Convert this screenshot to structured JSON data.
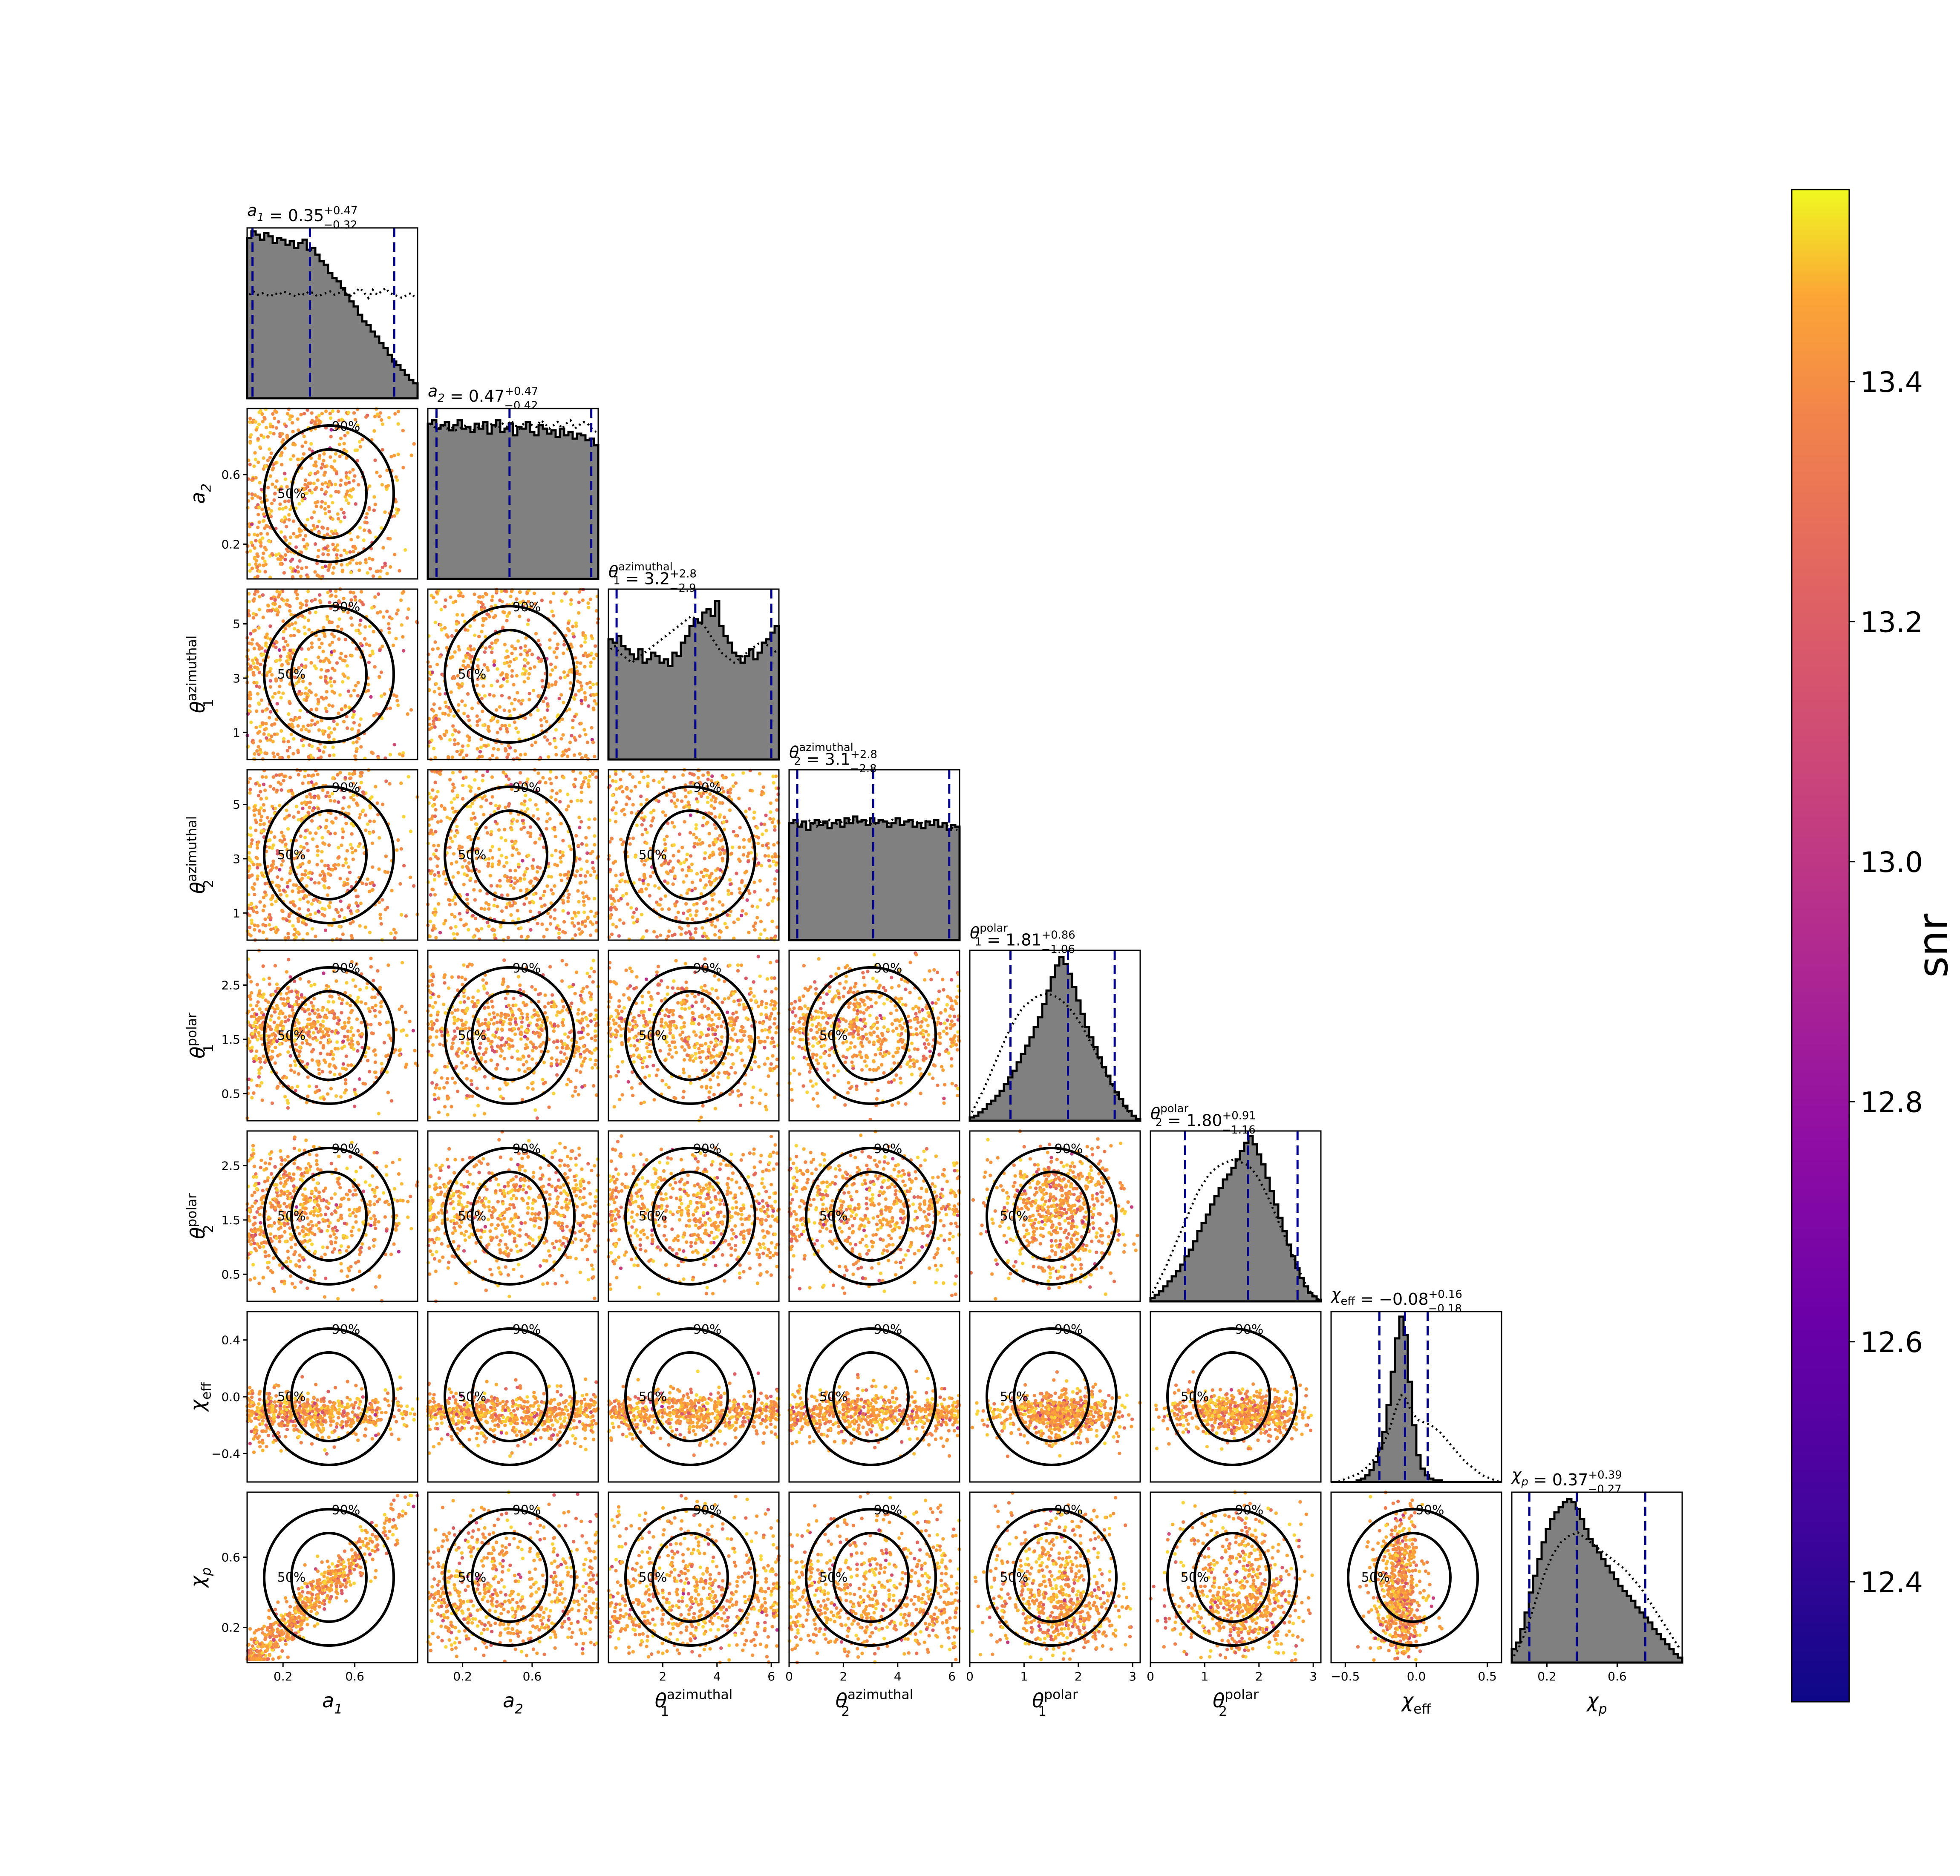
{
  "chart_data": {
    "type": "scatter",
    "layout": "corner plot (triangle of 1-D histograms and 2-D scatter panels with contours)",
    "parameters": [
      {
        "key": "a1",
        "axis_label": "a_1",
        "sym": "a",
        "sub": "1",
        "sup": "",
        "range": [
          0.0,
          0.95
        ],
        "ticks": [
          0.2,
          0.6
        ],
        "tick_labels": [
          "0.2",
          "0.6"
        ],
        "median": 0.35,
        "plus": "0.47",
        "minus": "0.32",
        "title_value": "0.35"
      },
      {
        "key": "a2",
        "axis_label": "a_2",
        "sym": "a",
        "sub": "2",
        "sup": "",
        "range": [
          0.0,
          0.98
        ],
        "ticks": [
          0.2,
          0.6
        ],
        "tick_labels": [
          "0.2",
          "0.6"
        ],
        "median": 0.47,
        "plus": "0.47",
        "minus": "0.42",
        "title_value": "0.47"
      },
      {
        "key": "theta1_az",
        "axis_label": "θ_1^azimuthal",
        "sym": "θ",
        "sub": "1",
        "sup": "azimuthal",
        "range": [
          0.0,
          6.28
        ],
        "ticks": [
          2,
          4,
          6
        ],
        "tick_labels": [
          "2",
          "4",
          "6"
        ],
        "ylabel_ticks": [
          1,
          3,
          5
        ],
        "median": 3.2,
        "plus": "2.8",
        "minus": "2.9",
        "title_value": "3.2"
      },
      {
        "key": "theta2_az",
        "axis_label": "θ_2^azimuthal",
        "sym": "θ",
        "sub": "2",
        "sup": "azimuthal",
        "range": [
          0.0,
          6.28
        ],
        "ticks": [
          0,
          2,
          4,
          6
        ],
        "tick_labels": [
          "0",
          "2",
          "4",
          "6"
        ],
        "ylabel_ticks": [
          1,
          3,
          5
        ],
        "median": 3.1,
        "plus": "2.8",
        "minus": "2.8",
        "title_value": "3.1"
      },
      {
        "key": "theta1_pol",
        "axis_label": "θ_1^polar",
        "sym": "θ",
        "sub": "1",
        "sup": "polar",
        "range": [
          0.0,
          3.14
        ],
        "ticks": [
          0,
          1,
          2,
          3
        ],
        "tick_labels": [
          "0",
          "1",
          "2",
          "3"
        ],
        "ylabel_ticks": [
          0.5,
          1.5,
          2.5
        ],
        "median": 1.81,
        "plus": "0.86",
        "minus": "1.06",
        "title_value": "1.81"
      },
      {
        "key": "theta2_pol",
        "axis_label": "θ_2^polar",
        "sym": "θ",
        "sub": "2",
        "sup": "polar",
        "range": [
          0.0,
          3.14
        ],
        "ticks": [
          0,
          1,
          2,
          3
        ],
        "tick_labels": [
          "0",
          "1",
          "2",
          "3"
        ],
        "ylabel_ticks": [
          0.5,
          1.5,
          2.5
        ],
        "median": 1.8,
        "plus": "0.91",
        "minus": "1.16",
        "title_value": "1.80"
      },
      {
        "key": "chi_eff",
        "axis_label": "χ_eff",
        "sym": "χ",
        "sub": "eff",
        "sup": "",
        "range": [
          -0.6,
          0.6
        ],
        "ticks": [
          -0.5,
          0.0,
          0.5
        ],
        "tick_labels": [
          "−0.5",
          "0.0",
          "0.5"
        ],
        "ylabel_ticks": [
          -0.4,
          0.0,
          0.4
        ],
        "ylabel_tick_labels": [
          "−0.4",
          "0.0",
          "0.4"
        ],
        "median": -0.08,
        "plus": "0.16",
        "minus": "0.18",
        "title_value": "−0.08"
      },
      {
        "key": "chi_p",
        "axis_label": "χ_p",
        "sym": "χ",
        "sub": "p",
        "sup": "",
        "range": [
          0.0,
          0.97
        ],
        "ticks": [
          0.2,
          0.6
        ],
        "tick_labels": [
          "0.2",
          "0.6"
        ],
        "median": 0.37,
        "plus": "0.39",
        "minus": "0.27",
        "title_value": "0.37"
      }
    ],
    "histograms": {
      "a1": [
        0.96,
        1.0,
        0.98,
        0.95,
        0.99,
        0.97,
        0.93,
        0.96,
        0.95,
        0.92,
        0.94,
        0.9,
        0.93,
        0.95,
        0.89,
        0.9,
        0.86,
        0.82,
        0.8,
        0.75,
        0.72,
        0.7,
        0.66,
        0.62,
        0.58,
        0.55,
        0.5,
        0.46,
        0.44,
        0.4,
        0.37,
        0.33,
        0.3,
        0.26,
        0.22,
        0.2,
        0.17,
        0.14,
        0.11,
        0.09
      ],
      "a2": [
        0.93,
        0.95,
        0.9,
        0.92,
        0.94,
        0.89,
        0.92,
        0.95,
        0.9,
        0.91,
        0.88,
        0.93,
        0.9,
        0.94,
        0.87,
        0.92,
        0.95,
        0.88,
        0.9,
        0.93,
        0.86,
        0.91,
        0.9,
        0.94,
        0.88,
        0.86,
        0.92,
        0.9,
        0.87,
        0.89,
        0.85,
        0.9,
        0.86,
        0.88,
        0.84,
        0.87,
        0.86,
        0.83,
        0.84,
        0.8
      ],
      "theta1_az": [
        0.72,
        0.7,
        0.74,
        0.68,
        0.66,
        0.63,
        0.6,
        0.66,
        0.58,
        0.6,
        0.64,
        0.62,
        0.58,
        0.6,
        0.56,
        0.64,
        0.62,
        0.7,
        0.74,
        0.8,
        0.84,
        0.82,
        0.88,
        0.9,
        0.86,
        0.95,
        0.8,
        0.74,
        0.7,
        0.64,
        0.62,
        0.58,
        0.62,
        0.66,
        0.6,
        0.64,
        0.7,
        0.72,
        0.76,
        0.8
      ],
      "theta2_az": [
        0.7,
        0.72,
        0.68,
        0.71,
        0.66,
        0.7,
        0.72,
        0.69,
        0.71,
        0.67,
        0.7,
        0.72,
        0.68,
        0.73,
        0.7,
        0.74,
        0.71,
        0.72,
        0.69,
        0.73,
        0.7,
        0.72,
        0.71,
        0.68,
        0.7,
        0.73,
        0.69,
        0.71,
        0.72,
        0.68,
        0.7,
        0.67,
        0.71,
        0.69,
        0.72,
        0.68,
        0.7,
        0.66,
        0.69,
        0.68
      ],
      "theta1_pol": [
        0.02,
        0.03,
        0.05,
        0.07,
        0.1,
        0.12,
        0.15,
        0.18,
        0.22,
        0.26,
        0.3,
        0.35,
        0.4,
        0.45,
        0.5,
        0.56,
        0.62,
        0.7,
        0.78,
        0.86,
        0.93,
        0.98,
        0.94,
        0.88,
        0.8,
        0.72,
        0.64,
        0.56,
        0.5,
        0.44,
        0.38,
        0.32,
        0.27,
        0.22,
        0.17,
        0.13,
        0.09,
        0.06,
        0.03,
        0.01
      ],
      "theta2_pol": [
        0.02,
        0.04,
        0.06,
        0.09,
        0.12,
        0.15,
        0.18,
        0.22,
        0.27,
        0.31,
        0.36,
        0.42,
        0.47,
        0.52,
        0.58,
        0.63,
        0.68,
        0.73,
        0.76,
        0.8,
        0.85,
        0.9,
        0.95,
        0.99,
        0.94,
        0.88,
        0.82,
        0.74,
        0.66,
        0.58,
        0.5,
        0.42,
        0.34,
        0.27,
        0.2,
        0.14,
        0.09,
        0.05,
        0.03,
        0.01
      ],
      "chi_eff": [
        0.0,
        0.0,
        0.0,
        0.0,
        0.0,
        0.0,
        0.01,
        0.02,
        0.04,
        0.07,
        0.12,
        0.2,
        0.3,
        0.46,
        0.66,
        0.86,
        0.99,
        0.88,
        0.6,
        0.34,
        0.16,
        0.08,
        0.04,
        0.02,
        0.01,
        0.01,
        0.0,
        0.0,
        0.0,
        0.0,
        0.0,
        0.0,
        0.0,
        0.0,
        0.0,
        0.0,
        0.0,
        0.0,
        0.0,
        0.0
      ],
      "chi_p": [
        0.08,
        0.12,
        0.2,
        0.3,
        0.42,
        0.52,
        0.62,
        0.72,
        0.8,
        0.86,
        0.9,
        0.93,
        0.96,
        0.98,
        0.96,
        0.92,
        0.86,
        0.8,
        0.74,
        0.7,
        0.66,
        0.62,
        0.58,
        0.54,
        0.5,
        0.46,
        0.43,
        0.4,
        0.37,
        0.33,
        0.3,
        0.27,
        0.24,
        0.2,
        0.17,
        0.14,
        0.11,
        0.08,
        0.05,
        0.03
      ]
    },
    "prior_curves": {
      "a1": [
        0.62,
        0.64,
        0.62,
        0.63,
        0.62,
        0.61,
        0.63,
        0.62,
        0.64,
        0.63,
        0.62,
        0.61,
        0.63,
        0.62,
        0.64,
        0.63,
        0.61,
        0.62,
        0.63,
        0.64,
        0.62,
        0.63,
        0.65,
        0.62,
        0.61,
        0.64,
        0.66,
        0.63,
        0.6,
        0.65,
        0.62,
        0.64,
        0.66,
        0.63,
        0.62,
        0.61,
        0.6,
        0.62,
        0.63,
        0.6
      ],
      "a2": [
        0.93,
        0.91,
        0.9,
        0.92,
        0.9,
        0.91,
        0.89,
        0.9,
        0.92,
        0.91,
        0.89,
        0.9,
        0.92,
        0.91,
        0.93,
        0.92,
        0.9,
        0.93,
        0.91,
        0.95,
        0.92,
        0.9,
        0.93,
        0.94,
        0.92,
        0.91,
        0.95,
        0.93,
        0.9,
        0.92,
        0.94,
        0.9,
        0.93,
        0.95,
        0.9,
        0.92,
        0.94,
        0.93,
        0.9,
        0.88
      ],
      "theta1_az": [
        0.66,
        0.68,
        0.64,
        0.62,
        0.6,
        0.58,
        0.6,
        0.62,
        0.64,
        0.66,
        0.68,
        0.7,
        0.72,
        0.74,
        0.76,
        0.78,
        0.8,
        0.82,
        0.84,
        0.86,
        0.84,
        0.82,
        0.8,
        0.76,
        0.72,
        0.68,
        0.64,
        0.62,
        0.6,
        0.58,
        0.6,
        0.62,
        0.64,
        0.66,
        0.68,
        0.7,
        0.7,
        0.68,
        0.66,
        0.64
      ],
      "theta2_az": [
        0.7,
        0.71,
        0.69,
        0.7,
        0.72,
        0.7,
        0.68,
        0.71,
        0.7,
        0.72,
        0.69,
        0.7,
        0.71,
        0.7,
        0.73,
        0.71,
        0.7,
        0.72,
        0.71,
        0.69,
        0.7,
        0.72,
        0.71,
        0.7,
        0.73,
        0.71,
        0.69,
        0.7,
        0.72,
        0.7,
        0.71,
        0.7,
        0.72,
        0.7,
        0.68,
        0.7,
        0.69,
        0.68,
        0.67,
        0.66
      ],
      "theta1_pol": [
        0.05,
        0.1,
        0.15,
        0.2,
        0.26,
        0.32,
        0.38,
        0.44,
        0.5,
        0.55,
        0.6,
        0.64,
        0.68,
        0.7,
        0.72,
        0.74,
        0.75,
        0.76,
        0.76,
        0.75,
        0.74,
        0.72,
        0.7,
        0.67,
        0.64,
        0.6,
        0.56,
        0.51,
        0.46,
        0.41,
        0.36,
        0.31,
        0.26,
        0.21,
        0.16,
        0.12,
        0.08,
        0.05,
        0.02,
        0.01
      ],
      "theta2_pol": [
        0.05,
        0.1,
        0.15,
        0.2,
        0.26,
        0.32,
        0.38,
        0.44,
        0.5,
        0.56,
        0.62,
        0.67,
        0.71,
        0.75,
        0.78,
        0.8,
        0.82,
        0.83,
        0.84,
        0.85,
        0.84,
        0.83,
        0.82,
        0.8,
        0.77,
        0.73,
        0.68,
        0.63,
        0.57,
        0.51,
        0.45,
        0.39,
        0.33,
        0.27,
        0.21,
        0.15,
        0.1,
        0.06,
        0.03,
        0.01
      ],
      "chi_eff": [
        0.0,
        0.0,
        0.01,
        0.02,
        0.03,
        0.04,
        0.05,
        0.07,
        0.09,
        0.12,
        0.15,
        0.19,
        0.24,
        0.3,
        0.38,
        0.46,
        0.52,
        0.5,
        0.44,
        0.4,
        0.37,
        0.36,
        0.35,
        0.34,
        0.32,
        0.3,
        0.27,
        0.24,
        0.21,
        0.18,
        0.15,
        0.12,
        0.1,
        0.08,
        0.06,
        0.04,
        0.03,
        0.02,
        0.01,
        0.0
      ],
      "chi_p": [
        0.04,
        0.08,
        0.14,
        0.2,
        0.28,
        0.36,
        0.44,
        0.52,
        0.58,
        0.64,
        0.68,
        0.72,
        0.74,
        0.76,
        0.77,
        0.78,
        0.76,
        0.74,
        0.72,
        0.7,
        0.68,
        0.66,
        0.64,
        0.62,
        0.6,
        0.58,
        0.56,
        0.53,
        0.5,
        0.47,
        0.44,
        0.4,
        0.36,
        0.32,
        0.28,
        0.24,
        0.2,
        0.16,
        0.12,
        0.08
      ]
    },
    "contour_labels": [
      "50%",
      "90%"
    ],
    "colorbar": {
      "label": "snr",
      "colormap": "plasma",
      "min": 12.3,
      "max": 13.56,
      "ticks": [
        12.4,
        12.6,
        12.8,
        13.0,
        13.2,
        13.4
      ],
      "tick_labels": [
        "12.4",
        "12.6",
        "12.8",
        "13.0",
        "13.2",
        "13.4"
      ]
    },
    "colors": {
      "histogram_fill": "#808080",
      "histogram_edge": "#000000",
      "quantile_lines": "#00008b",
      "contour": "#000000",
      "scatter_low": "#8a16a2",
      "scatter_mid": "#ef7a4e",
      "scatter_high": "#f9c331"
    }
  }
}
